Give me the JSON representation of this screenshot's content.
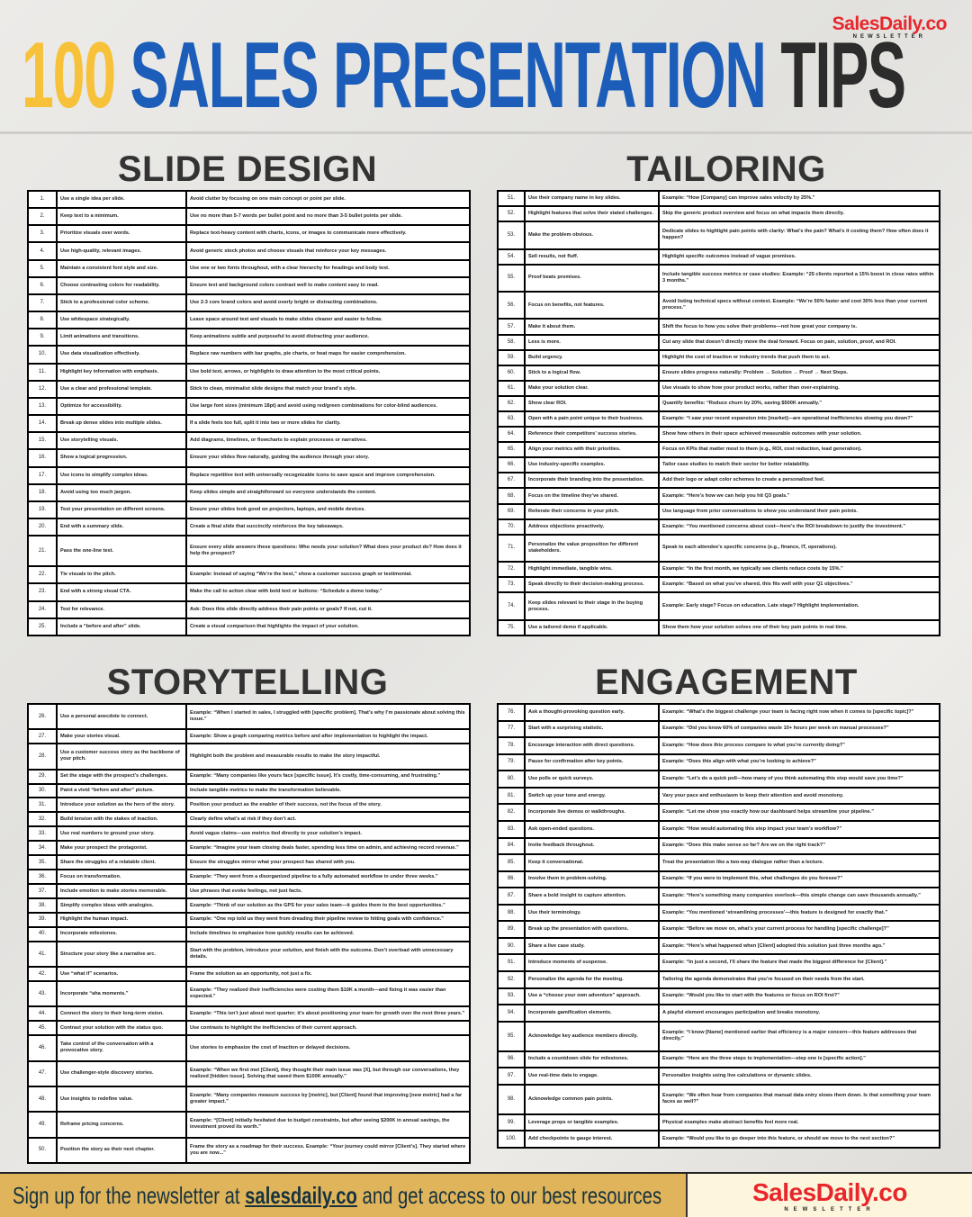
{
  "logo": {
    "brand": "SalesDaily.co",
    "sub": "NEWSLETTER"
  },
  "title": {
    "part1": "100",
    "part2": "SALES PRESENTATION",
    "part3": "TIPS"
  },
  "colors": {
    "gold": "#f7c23a",
    "blue": "#1b5db8",
    "dark": "#2c2c2c",
    "brand_red": "#e8262b",
    "footer_gold": "#e0b45a"
  },
  "sections": [
    {
      "title": "SLIDE DESIGN",
      "rows": [
        [
          "1.",
          "Use a single idea per slide.",
          "Avoid clutter by focusing on one main concept or point per slide."
        ],
        [
          "2.",
          "Keep text to a minimum.",
          "Use no more than 5-7 words per bullet point and no more than 3-5 bullet points per slide."
        ],
        [
          "3.",
          "Prioritize visuals over words.",
          "Replace text-heavy content with charts, icons, or images to communicate more effectively."
        ],
        [
          "4.",
          "Use high-quality, relevant images.",
          "Avoid generic stock photos and choose visuals that reinforce your key messages."
        ],
        [
          "5.",
          "Maintain a consistent font style and size.",
          "Use one or two fonts throughout, with a clear hierarchy for headings and body text."
        ],
        [
          "6.",
          "Choose contrasting colors for readability.",
          "Ensure text and background colors contrast well to make content easy to read."
        ],
        [
          "7.",
          "Stick to a professional color scheme.",
          "Use 2-3 core brand colors and avoid overly bright or distracting combinations."
        ],
        [
          "8.",
          "Use whitespace strategically.",
          "Leave space around text and visuals to make slides cleaner and easier to follow."
        ],
        [
          "9.",
          "Limit animations and transitions.",
          "Keep animations subtle and purposeful to avoid distracting your audience."
        ],
        [
          "10.",
          "Use data visualization effectively.",
          "Replace raw numbers with bar graphs, pie charts, or heat maps for easier comprehension."
        ],
        [
          "11.",
          "Highlight key information with emphasis.",
          "Use bold text, arrows, or highlights to draw attention to the most critical points."
        ],
        [
          "12.",
          "Use a clear and professional template.",
          "Stick to clean, minimalist slide designs that match your brand’s style."
        ],
        [
          "13.",
          "Optimize for accessibility.",
          "Use large font sizes (minimum 18pt) and avoid using red/green combinations for color-blind audiences."
        ],
        [
          "14.",
          "Break up dense slides into multiple slides.",
          "If a slide feels too full, split it into two or more slides for clarity."
        ],
        [
          "15.",
          "Use storytelling visuals.",
          "Add diagrams, timelines, or flowcharts to explain processes or narratives."
        ],
        [
          "16.",
          "Show a logical progression.",
          "Ensure your slides flow naturally, guiding the audience through your story."
        ],
        [
          "17.",
          "Use icons to simplify complex ideas.",
          "Replace repetitive text with universally recognizable icons to save space and improve comprehension."
        ],
        [
          "18.",
          "Avoid using too much jargon.",
          "Keep slides simple and straightforward so everyone understands the content."
        ],
        [
          "19.",
          "Test your presentation on different screens.",
          "Ensure your slides look good on projectors, laptops, and mobile devices."
        ],
        [
          "20.",
          "End with a summary slide.",
          "Create a final slide that succinctly reinforces the key takeaways."
        ],
        [
          "21.",
          "Pass the one-line test.",
          "Ensure every slide answers these questions: Who needs your solution? What does your product do? How does it help the prospect?"
        ],
        [
          "22.",
          "Tie visuals to the pitch.",
          "Example: Instead of saying “We’re the best,” show a customer success graph or testimonial."
        ],
        [
          "23.",
          "End with a strong visual CTA.",
          "Make the call to action clear with bold text or buttons: “Schedule a demo today.”"
        ],
        [
          "24.",
          "Test for relevance.",
          "Ask: Does this slide directly address their pain points or goals? If not, cut it."
        ],
        [
          "25.",
          "Include a “before and after” slide.",
          "Create a visual comparison that highlights the impact of your solution."
        ]
      ]
    },
    {
      "title": "TAILORING",
      "rows": [
        [
          "51.",
          "Use their company name in key slides.",
          "Example: “How [Company] can improve sales velocity by 25%.”"
        ],
        [
          "52.",
          "Highlight features that solve their stated challenges.",
          "Skip the generic product overview and focus on what impacts them directly."
        ],
        [
          "53.",
          "Make the problem obvious.",
          "Dedicate slides to highlight pain points with clarity: What’s the pain? What’s it costing them? How often does it happen?"
        ],
        [
          "54.",
          "Sell results, not fluff.",
          "Highlight specific outcomes instead of vague promises."
        ],
        [
          "55.",
          "Proof beats promises.",
          "Include tangible success metrics or case studies: Example: “25 clients reported a 15% boost in close rates within 3 months.”"
        ],
        [
          "56.",
          "Focus on benefits, not features.",
          "Avoid listing technical specs without context. Example: “We’re 50% faster and cost 30% less than your current process.”"
        ],
        [
          "57.",
          "Make it about them.",
          "Shift the focus to how you solve their problems—not how great your company is."
        ],
        [
          "58.",
          "Less is more.",
          "Cut any slide that doesn’t directly move the deal forward. Focus on pain, solution, proof, and ROI."
        ],
        [
          "59.",
          "Build urgency.",
          "Highlight the cost of inaction or industry trends that push them to act."
        ],
        [
          "60.",
          "Stick to a logical flow.",
          "Ensure slides progress naturally: Problem → Solution → Proof → Next Steps."
        ],
        [
          "61.",
          "Make your solution clear.",
          "Use visuals to show how your product works, rather than over-explaining."
        ],
        [
          "62.",
          "Show clear ROI.",
          "Quantify benefits: “Reduce churn by 20%, saving $500K annually.”"
        ],
        [
          "63.",
          "Open with a pain point unique to their business.",
          "Example: “I saw your recent expansion into [market]—are operational inefficiencies slowing you down?”"
        ],
        [
          "64.",
          "Reference their competitors’ success stories.",
          "Show how others in their space achieved measurable outcomes with your solution."
        ],
        [
          "65.",
          "Align your metrics with their priorities.",
          "Focus on KPIs that matter most to them (e.g., ROI, cost reduction, lead generation)."
        ],
        [
          "66.",
          "Use industry-specific examples.",
          "Tailor case studies to match their sector for better relatability."
        ],
        [
          "67.",
          "Incorporate their branding into the presentation.",
          "Add their logo or adapt color schemes to create a personalized feel."
        ],
        [
          "68.",
          "Focus on the timeline they’ve shared.",
          "Example: “Here’s how we can help you hit Q3 goals.”"
        ],
        [
          "69.",
          "Reiterate their concerns in your pitch.",
          "Use language from prior conversations to show you understand their pain points."
        ],
        [
          "70.",
          "Address objections proactively.",
          "Example: “You mentioned concerns about cost—here’s the ROI breakdown to justify the investment.”"
        ],
        [
          "71.",
          "Personalize the value proposition for different stakeholders.",
          "Speak to each attendee’s specific concerns (e.g., finance, IT, operations)."
        ],
        [
          "72.",
          "Highlight immediate, tangible wins.",
          "Example: “In the first month, we typically see clients reduce costs by 15%.”"
        ],
        [
          "73.",
          "Speak directly to their decision-making process.",
          "Example: “Based on what you’ve shared, this fits well with your Q1 objectives.”"
        ],
        [
          "74.",
          "Keep slides relevant to their stage in the buying process.",
          "Example: Early stage? Focus on education. Late stage? Highlight implementation."
        ],
        [
          "75.",
          "Use a tailored demo if applicable.",
          "Show them how your solution solves one of their key pain points in real time."
        ]
      ]
    },
    {
      "title": "STORYTELLING",
      "rows": [
        [
          "26.",
          "Use a personal anecdote to connect.",
          "Example: “When I started in sales, I struggled with [specific problem]. That’s why I’m passionate about solving this issue.”"
        ],
        [
          "27.",
          "Make your stories visual.",
          "Example: Show a graph comparing metrics before and after implementation to highlight the impact."
        ],
        [
          "28.",
          "Use a customer success story as the backbone of your pitch.",
          "Highlight both the problem and measurable results to make the story impactful."
        ],
        [
          "29.",
          "Set the stage with the prospect’s challenges.",
          "Example: “Many companies like yours face [specific issue]. It’s costly, time-consuming, and frustrating.”"
        ],
        [
          "30.",
          "Paint a vivid “before and after” picture.",
          "Include tangible metrics to make the transformation believable."
        ],
        [
          "31.",
          "Introduce your solution as the hero of the story.",
          "Position your product as the enabler of their success, not the focus of the story."
        ],
        [
          "32.",
          "Build tension with the stakes of inaction.",
          "Clearly define what’s at risk if they don’t act."
        ],
        [
          "33.",
          "Use real numbers to ground your story.",
          "Avoid vague claims—use metrics tied directly to your solution’s impact."
        ],
        [
          "34.",
          "Make your prospect the protagonist.",
          "Example: “Imagine your team closing deals faster, spending less time on admin, and achieving record revenue.”"
        ],
        [
          "35.",
          "Share the struggles of a relatable client.",
          "Ensure the struggles mirror what your prospect has shared with you."
        ],
        [
          "36.",
          "Focus on transformation.",
          "Example: “They went from a disorganized pipeline to a fully automated workflow in under three weeks.”"
        ],
        [
          "37.",
          "Include emotion to make stories memorable.",
          "Use phrases that evoke feelings, not just facts."
        ],
        [
          "38.",
          "Simplify complex ideas with analogies.",
          "Example: “Think of our solution as the GPS for your sales team—it guides them to the best opportunities.”"
        ],
        [
          "39.",
          "Highlight the human impact.",
          "Example: “One rep told us they went from dreading their pipeline review to hitting goals with confidence.”"
        ],
        [
          "40.",
          "Incorporate milestones.",
          "Include timelines to emphasize how quickly results can be achieved."
        ],
        [
          "41.",
          "Structure your story like a narrative arc.",
          "Start with the problem, introduce your solution, and finish with the outcome. Don’t overload with unnecessary details."
        ],
        [
          "42.",
          "Use “what if” scenarios.",
          "Frame the solution as an opportunity, not just a fix."
        ],
        [
          "43.",
          "Incorporate “aha moments.”",
          "Example: “They realized their inefficiencies were costing them $10K a month—and fixing it was easier than expected.”"
        ],
        [
          "44.",
          "Connect the story to their long-term vision.",
          "Example: “This isn’t just about next quarter; it’s about positioning your team for growth over the next three years.”"
        ],
        [
          "45.",
          "Contrast your solution with the status quo.",
          "Use contrasts to highlight the inefficiencies of their current approach."
        ],
        [
          "46.",
          "Take control of the conversation with a provocative story.",
          "Use stories to emphasize the cost of inaction or delayed decisions."
        ],
        [
          "47.",
          "Use challenger-style discovery stories.",
          "Example: “When we first met [Client], they thought their main issue was [X], but through our conversations, they realized [hidden issue]. Solving that saved them $100K annually.”"
        ],
        [
          "48.",
          "Use insights to redefine value.",
          "Example: “Many companies measure success by [metric], but [Client] found that improving [new metric] had a far greater impact.”"
        ],
        [
          "49.",
          "Reframe pricing concerns.",
          "Example: “[Client] initially hesitated due to budget constraints, but after seeing $200K in annual savings, the investment proved its worth.”"
        ],
        [
          "50.",
          "Position the story as their next chapter.",
          "Frame the story as a roadmap for their success. Example: “Your journey could mirror [Client’s]. They started where you are now...”"
        ]
      ]
    },
    {
      "title": "ENGAGEMENT",
      "rows": [
        [
          "76.",
          "Ask a thought-provoking question early.",
          "Example: “What’s the biggest challenge your team is facing right now when it comes to [specific topic]?”"
        ],
        [
          "77.",
          "Start with a surprising statistic.",
          "Example: “Did you know 60% of companies waste 10+ hours per week on manual processes?”"
        ],
        [
          "78.",
          "Encourage interaction with direct questions.",
          "Example: “How does this process compare to what you’re currently doing?”"
        ],
        [
          "79.",
          "Pause for confirmation after key points.",
          "Example: “Does this align with what you’re looking to achieve?”"
        ],
        [
          "80.",
          "Use polls or quick surveys.",
          "Example: “Let’s do a quick poll—how many of you think automating this step would save you time?”"
        ],
        [
          "81.",
          "Switch up your tone and energy.",
          "Vary your pace and enthusiasm to keep their attention and avoid monotony."
        ],
        [
          "82.",
          "Incorporate live demos or walkthroughs.",
          "Example: “Let me show you exactly how our dashboard helps streamline your pipeline.”"
        ],
        [
          "83.",
          "Ask open-ended questions.",
          "Example: “How would automating this step impact your team’s workflow?”"
        ],
        [
          "84.",
          "Invite feedback throughout.",
          "Example: “Does this make sense so far? Are we on the right track?”"
        ],
        [
          "85.",
          "Keep it conversational.",
          "Treat the presentation like a two-way dialogue rather than a lecture."
        ],
        [
          "86.",
          "Involve them in problem-solving.",
          "Example: “If you were to implement this, what challenges do you foresee?”"
        ],
        [
          "87.",
          "Share a bold insight to capture attention.",
          "Example: “Here’s something many companies overlook—this simple change can save thousands annually.”"
        ],
        [
          "88.",
          "Use their terminology.",
          "Example: “You mentioned ‘streamlining processes’—this feature is designed for exactly that.”"
        ],
        [
          "89.",
          "Break up the presentation with questions.",
          "Example: “Before we move on, what’s your current process for handling [specific challenge]?”"
        ],
        [
          "90.",
          "Share a live case study.",
          "Example: “Here’s what happened when [Client] adopted this solution just three months ago.”"
        ],
        [
          "91.",
          "Introduce moments of suspense.",
          "Example: “In just a second, I’ll share the feature that made the biggest difference for [Client].”"
        ],
        [
          "92.",
          "Personalize the agenda for the meeting.",
          "Tailoring the agenda demonstrates that you’re focused on their needs from the start."
        ],
        [
          "93.",
          "Use a “choose your own adventure” approach.",
          "Example: “Would you like to start with the features or focus on ROI first?”"
        ],
        [
          "94.",
          "Incorporate gamification elements.",
          "A playful element encourages participation and breaks monotony."
        ],
        [
          "95.",
          "Acknowledge key audience members directly.",
          "Example: “I know [Name] mentioned earlier that efficiency is a major concern—this feature addresses that directly.”"
        ],
        [
          "96.",
          "Include a countdown slide for milestones.",
          "Example: “Here are the three steps to implementation—step one is [specific action].”"
        ],
        [
          "97.",
          "Use real-time data to engage.",
          "Personalize insights using live calculations or dynamic slides."
        ],
        [
          "98.",
          "Acknowledge common pain points.",
          "Example: “We often hear from companies that manual data entry slows them down. Is that something your team faces as well?”"
        ],
        [
          "99.",
          "Leverage props or tangible examples.",
          "Physical examples make abstract benefits feel more real."
        ],
        [
          "100.",
          "Add checkpoints to gauge interest.",
          "Example: “Would you like to go deeper into this feature, or should we move to the next section?”"
        ]
      ]
    }
  ],
  "footer": {
    "text_before": "Sign up for the newsletter at ",
    "link": "salesdaily.co",
    "text_after": " and get access to our best resources",
    "logo_brand": "SalesDaily.co",
    "logo_sub": "NEWSLETTER"
  }
}
